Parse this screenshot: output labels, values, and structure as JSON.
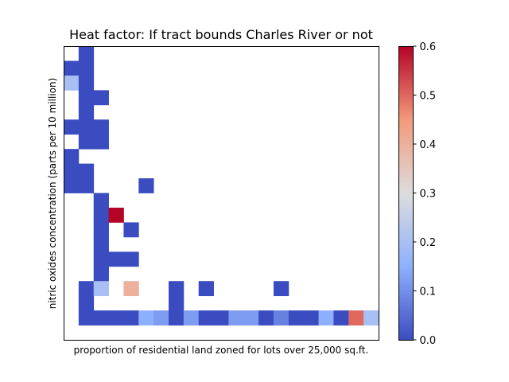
{
  "chart_data": {
    "type": "heatmap",
    "title": "Heat factor: If tract bounds Charles River or not",
    "xlabel": "proportion of residential land zoned for lots over 25,000 sq.ft.",
    "ylabel": "nitric oxides concentration (parts per 10 million)",
    "colormap": "coolwarm",
    "vmin": 0.0,
    "vmax": 0.6,
    "colorbar_ticks": [
      "0.0",
      "0.1",
      "0.2",
      "0.3",
      "0.4",
      "0.5",
      "0.6"
    ],
    "n_cols": 21,
    "n_rows": 20,
    "grid": false,
    "x_ticks_shown": false,
    "y_ticks_shown": false,
    "rows_top_to_bottom": [
      [
        null,
        0,
        null,
        null,
        null,
        null,
        null,
        null,
        null,
        null,
        null,
        null,
        null,
        null,
        null,
        null,
        null,
        null,
        null,
        null,
        null
      ],
      [
        0,
        0,
        null,
        null,
        null,
        null,
        null,
        null,
        null,
        null,
        null,
        null,
        null,
        null,
        null,
        null,
        null,
        null,
        null,
        null,
        null
      ],
      [
        0.2,
        0,
        null,
        null,
        null,
        null,
        null,
        null,
        null,
        null,
        null,
        null,
        null,
        null,
        null,
        null,
        null,
        null,
        null,
        null,
        null
      ],
      [
        null,
        0,
        0,
        null,
        null,
        null,
        null,
        null,
        null,
        null,
        null,
        null,
        null,
        null,
        null,
        null,
        null,
        null,
        null,
        null,
        null
      ],
      [
        null,
        0,
        null,
        null,
        null,
        null,
        null,
        null,
        null,
        null,
        null,
        null,
        null,
        null,
        null,
        null,
        null,
        null,
        null,
        null,
        null
      ],
      [
        0,
        0,
        0,
        null,
        null,
        null,
        null,
        null,
        null,
        null,
        null,
        null,
        null,
        null,
        null,
        null,
        null,
        null,
        null,
        null,
        null
      ],
      [
        null,
        0,
        0,
        null,
        null,
        null,
        null,
        null,
        null,
        null,
        null,
        null,
        null,
        null,
        null,
        null,
        null,
        null,
        null,
        null,
        null
      ],
      [
        0,
        null,
        null,
        null,
        null,
        null,
        null,
        null,
        null,
        null,
        null,
        null,
        null,
        null,
        null,
        null,
        null,
        null,
        null,
        null,
        null
      ],
      [
        0,
        0,
        null,
        null,
        null,
        null,
        null,
        null,
        null,
        null,
        null,
        null,
        null,
        null,
        null,
        null,
        null,
        null,
        null,
        null,
        null
      ],
      [
        0,
        0,
        null,
        null,
        null,
        0,
        null,
        null,
        null,
        null,
        null,
        null,
        null,
        null,
        null,
        null,
        null,
        null,
        null,
        null,
        null
      ],
      [
        null,
        null,
        0,
        null,
        null,
        null,
        null,
        null,
        null,
        null,
        null,
        null,
        null,
        null,
        null,
        null,
        null,
        null,
        null,
        null,
        null
      ],
      [
        null,
        null,
        0,
        0.6,
        null,
        null,
        null,
        null,
        null,
        null,
        null,
        null,
        null,
        null,
        null,
        null,
        null,
        null,
        null,
        null,
        null
      ],
      [
        null,
        null,
        0,
        null,
        0,
        null,
        null,
        null,
        null,
        null,
        null,
        null,
        null,
        null,
        null,
        null,
        null,
        null,
        null,
        null,
        null
      ],
      [
        null,
        null,
        0,
        null,
        null,
        null,
        null,
        null,
        null,
        null,
        null,
        null,
        null,
        null,
        null,
        null,
        null,
        null,
        null,
        null,
        null
      ],
      [
        null,
        null,
        0,
        0,
        0,
        null,
        null,
        null,
        null,
        null,
        null,
        null,
        null,
        null,
        null,
        null,
        null,
        null,
        null,
        null,
        null
      ],
      [
        null,
        null,
        0,
        null,
        null,
        null,
        null,
        null,
        null,
        null,
        null,
        null,
        null,
        null,
        null,
        null,
        null,
        null,
        null,
        null,
        null
      ],
      [
        null,
        0,
        0.2,
        null,
        0.4,
        null,
        null,
        0,
        null,
        0,
        null,
        null,
        null,
        null,
        0,
        null,
        null,
        null,
        null,
        null,
        null
      ],
      [
        null,
        0,
        null,
        null,
        null,
        null,
        null,
        0,
        null,
        null,
        null,
        null,
        null,
        null,
        null,
        null,
        null,
        null,
        null,
        null,
        null
      ],
      [
        null,
        0,
        0,
        0,
        0,
        0.15,
        0.12,
        0,
        0.12,
        0,
        0,
        0.12,
        0.12,
        0,
        0.08,
        0,
        0,
        0.15,
        0,
        0.5,
        0.2
      ],
      [
        null,
        null,
        null,
        null,
        null,
        null,
        null,
        null,
        null,
        null,
        null,
        null,
        null,
        null,
        null,
        null,
        null,
        null,
        null,
        null,
        null
      ]
    ]
  }
}
